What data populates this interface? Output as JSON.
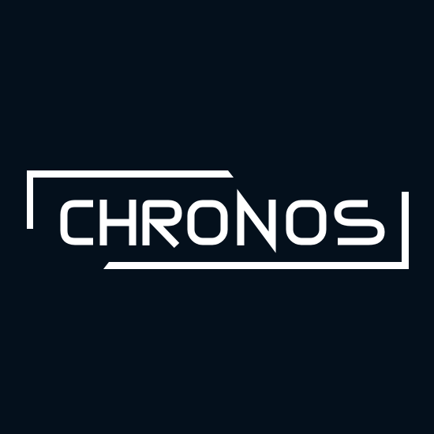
{
  "brand": {
    "wordmark": "CHRONOS",
    "foreground_color": "#ffffff",
    "background_color": "#04101c"
  }
}
